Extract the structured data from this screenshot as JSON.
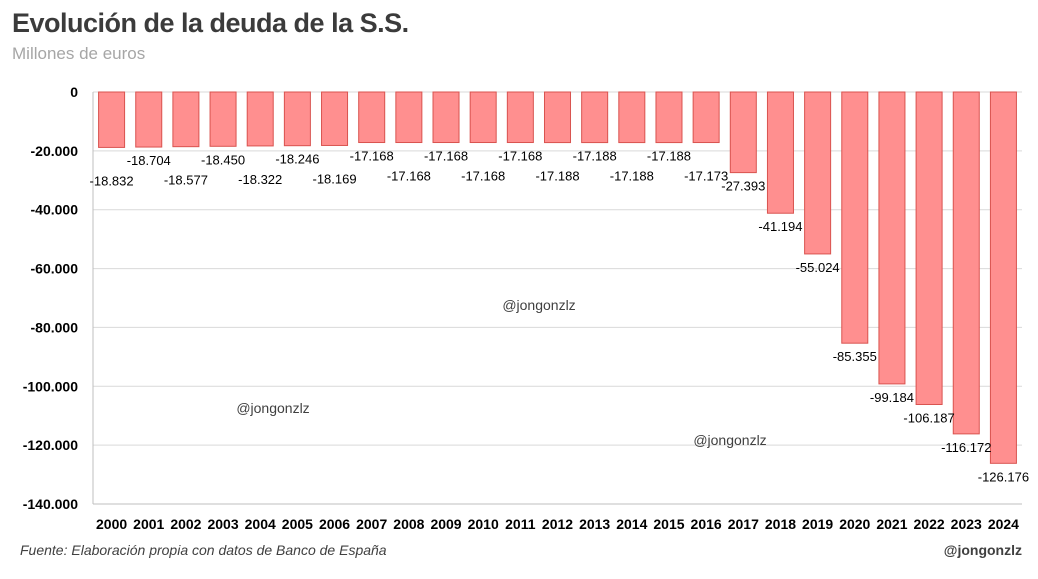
{
  "header": {
    "title": "Evolución de la deuda de la S.S.",
    "subtitle": "Millones de euros"
  },
  "footer": {
    "source": "Fuente: Elaboración propia con datos de Banco de España",
    "handle": "@jongonzlz"
  },
  "watermarks": [
    "@jongonzlz",
    "@jongonzlz",
    "@jongonzlz"
  ],
  "colors": {
    "bar_fill": "#ff8f8f",
    "bar_stroke": "#d9534f",
    "grid": "#d9d9d9",
    "text": "#000000"
  },
  "chart_data": {
    "type": "bar",
    "title": "Evolución de la deuda de la S.S.",
    "subtitle": "Millones de euros",
    "xlabel": "",
    "ylabel": "",
    "ylim": [
      -140000,
      0
    ],
    "yticks": [
      0,
      -20000,
      -40000,
      -60000,
      -80000,
      -100000,
      -120000,
      -140000
    ],
    "ytick_labels": [
      "0",
      "-20.000",
      "-40.000",
      "-60.000",
      "-80.000",
      "-100.000",
      "-120.000",
      "-140.000"
    ],
    "grid": true,
    "legend": "none",
    "categories": [
      "2000",
      "2001",
      "2002",
      "2003",
      "2004",
      "2005",
      "2006",
      "2007",
      "2008",
      "2009",
      "2010",
      "2011",
      "2012",
      "2013",
      "2014",
      "2015",
      "2016",
      "2017",
      "2018",
      "2019",
      "2020",
      "2021",
      "2022",
      "2023",
      "2024"
    ],
    "values": [
      -18832,
      -18704,
      -18577,
      -18450,
      -18322,
      -18246,
      -18169,
      -17168,
      -17168,
      -17168,
      -17168,
      -17168,
      -17188,
      -17188,
      -17188,
      -17188,
      -17173,
      -27393,
      -41194,
      -55024,
      -85355,
      -99184,
      -106187,
      -116172,
      -126176
    ],
    "data_labels": [
      "-18.832",
      "-18.704",
      "-18.577",
      "-18.450",
      "-18.322",
      "-18.246",
      "-18.169",
      "-17.168",
      "-17.168",
      "-17.168",
      "-17.168",
      "-17.168",
      "-17.188",
      "-17.188",
      "-17.188",
      "-17.188",
      "-17.173",
      "-27.393",
      "-41.194",
      "-55.024",
      "-85.355",
      "-99.184",
      "-106.187",
      "-116.172",
      "-126.176"
    ]
  }
}
